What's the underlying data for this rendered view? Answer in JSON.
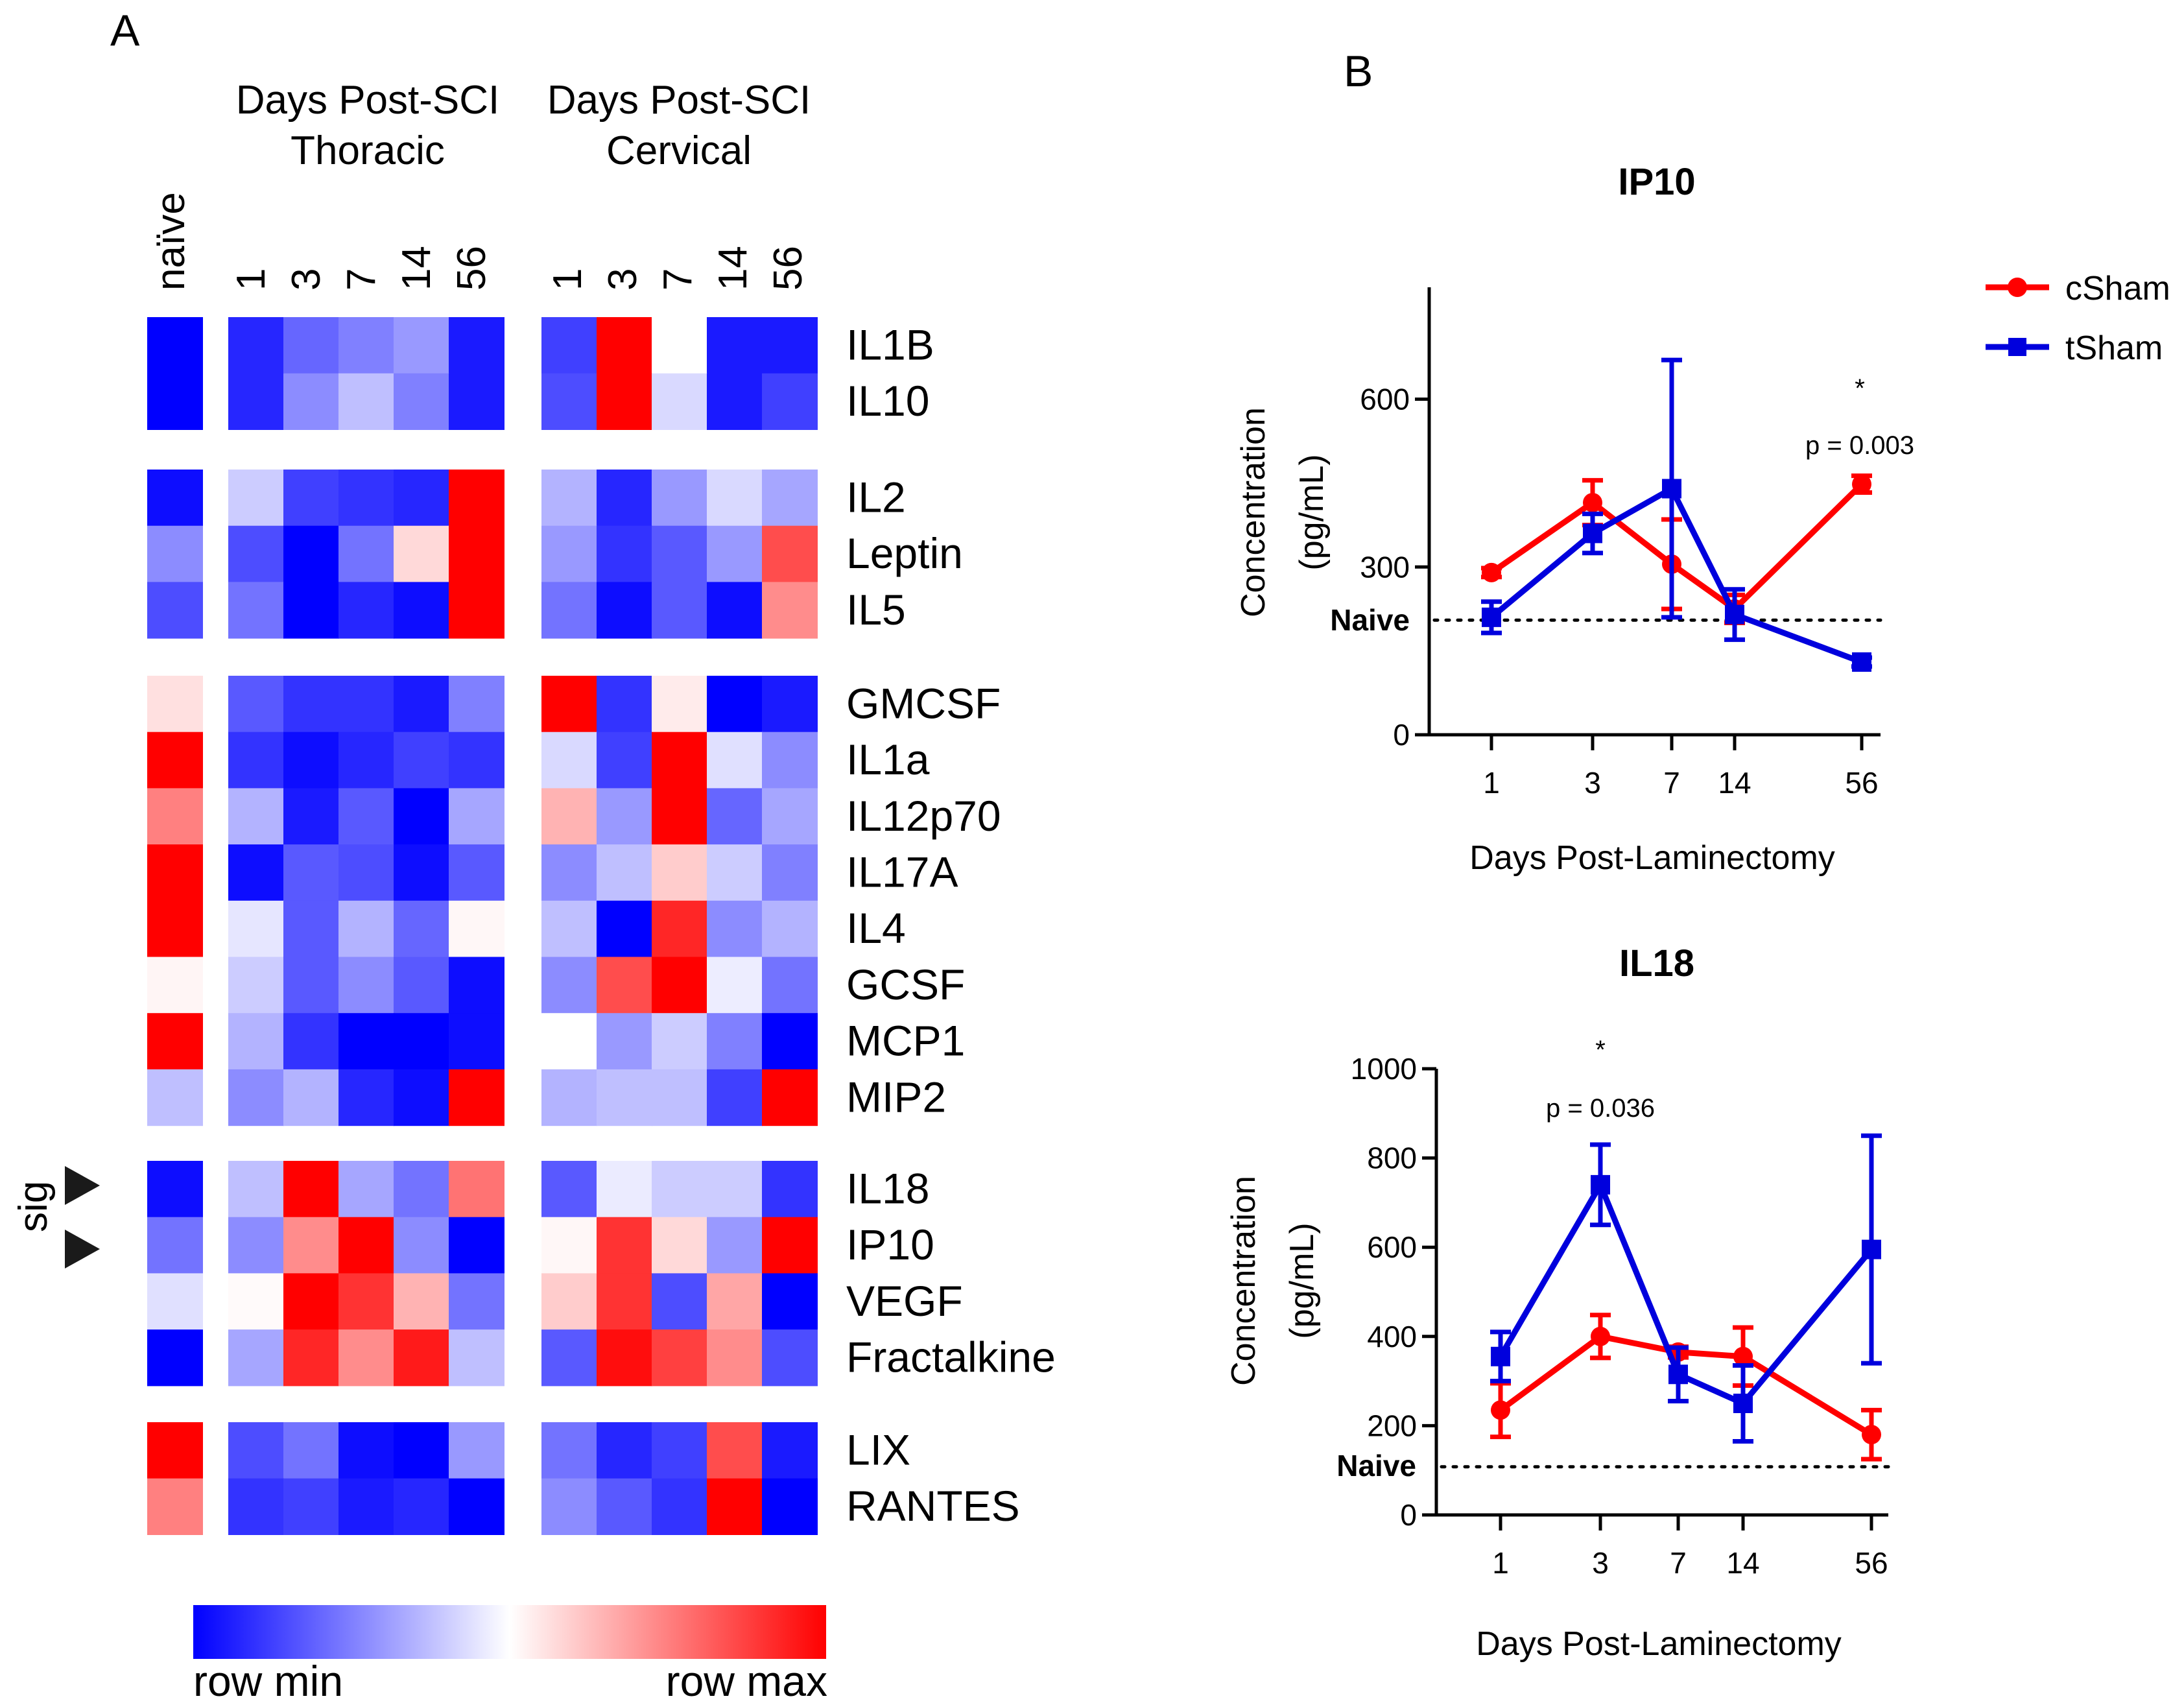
{
  "panel_labels": {
    "a": "A",
    "b": "B"
  },
  "heatmap": {
    "naive_label": "naïve",
    "groups": [
      {
        "title_line1": "Days Post-SCI",
        "title_line2": "Thoracic",
        "days": [
          "1",
          "3",
          "7",
          "14",
          "56"
        ]
      },
      {
        "title_line1": "Days Post-SCI",
        "title_line2": "Cervical",
        "days": [
          "1",
          "3",
          "7",
          "14",
          "56"
        ]
      }
    ],
    "sig_label": "sig",
    "legend_min": "row min",
    "legend_max": "row max",
    "colors": {
      "min": "#0000ff",
      "mid": "#ffffff",
      "max": "#ff0000"
    },
    "blocks": [
      {
        "rows": [
          {
            "name": "IL1B",
            "values": [
              -1,
              -0.85,
              -0.6,
              -0.5,
              -0.4,
              -0.9,
              -0.75,
              1,
              0,
              -0.9,
              -0.9
            ]
          },
          {
            "name": "IL10",
            "values": [
              -1,
              -0.85,
              -0.45,
              -0.25,
              -0.5,
              -0.9,
              -0.7,
              1,
              -0.15,
              -0.9,
              -0.75
            ]
          }
        ]
      },
      {
        "rows": [
          {
            "name": "IL2",
            "values": [
              -0.95,
              -0.2,
              -0.75,
              -0.8,
              -0.85,
              1,
              -0.3,
              -0.85,
              -0.4,
              -0.15,
              -0.35
            ]
          },
          {
            "name": "Leptin",
            "values": [
              -0.45,
              -0.7,
              -1,
              -0.55,
              0.15,
              1,
              -0.4,
              -0.8,
              -0.65,
              -0.4,
              0.7
            ]
          },
          {
            "name": "IL5",
            "values": [
              -0.7,
              -0.55,
              -1,
              -0.85,
              -0.95,
              1,
              -0.55,
              -0.95,
              -0.65,
              -0.95,
              0.45
            ]
          }
        ]
      },
      {
        "rows": [
          {
            "name": "GMCSF",
            "values": [
              0.12,
              -0.65,
              -0.8,
              -0.8,
              -0.9,
              -0.5,
              1,
              -0.8,
              0.08,
              -1,
              -0.9
            ]
          },
          {
            "name": "IL1a",
            "values": [
              1,
              -0.8,
              -0.95,
              -0.85,
              -0.75,
              -0.8,
              -0.15,
              -0.75,
              1,
              -0.12,
              -0.45
            ]
          },
          {
            "name": "IL12p70",
            "values": [
              0.5,
              -0.3,
              -0.9,
              -0.65,
              -1,
              -0.35,
              0.3,
              -0.4,
              1,
              -0.6,
              -0.35
            ]
          },
          {
            "name": "IL17A",
            "values": [
              1,
              -0.95,
              -0.65,
              -0.7,
              -0.95,
              -0.65,
              -0.45,
              -0.25,
              0.2,
              -0.2,
              -0.5
            ]
          },
          {
            "name": "IL4",
            "values": [
              1,
              -0.1,
              -0.65,
              -0.3,
              -0.6,
              0.03,
              -0.25,
              -1,
              0.85,
              -0.45,
              -0.3
            ]
          },
          {
            "name": "GCSF",
            "values": [
              0.04,
              -0.2,
              -0.65,
              -0.45,
              -0.65,
              -0.95,
              -0.45,
              0.7,
              1,
              -0.07,
              -0.55
            ]
          },
          {
            "name": "MCP1",
            "values": [
              1,
              -0.3,
              -0.8,
              -1,
              -1,
              -0.95,
              0,
              -0.4,
              -0.2,
              -0.5,
              -1
            ]
          },
          {
            "name": "MIP2",
            "values": [
              -0.25,
              -0.45,
              -0.3,
              -0.85,
              -0.95,
              1,
              -0.3,
              -0.25,
              -0.25,
              -0.75,
              1
            ]
          }
        ]
      },
      {
        "rows": [
          {
            "name": "IL18",
            "values": [
              -0.95,
              -0.25,
              1,
              -0.35,
              -0.55,
              0.55,
              -0.65,
              -0.08,
              -0.2,
              -0.2,
              -0.8
            ]
          },
          {
            "name": "IP10",
            "values": [
              -0.55,
              -0.45,
              0.45,
              1,
              -0.45,
              -1,
              0.03,
              0.8,
              0.15,
              -0.4,
              1
            ]
          },
          {
            "name": "VEGF",
            "values": [
              -0.12,
              0.02,
              1,
              0.8,
              0.3,
              -0.55,
              0.2,
              0.8,
              -0.7,
              0.35,
              -1
            ]
          },
          {
            "name": "Fractalkine",
            "values": [
              -1,
              -0.35,
              0.85,
              0.45,
              0.9,
              -0.25,
              -0.65,
              0.95,
              0.75,
              0.45,
              -0.7
            ]
          }
        ]
      },
      {
        "rows": [
          {
            "name": "LIX",
            "values": [
              1,
              -0.7,
              -0.55,
              -0.95,
              -1,
              -0.4,
              -0.55,
              -0.85,
              -0.75,
              0.7,
              -0.9
            ]
          },
          {
            "name": "RANTES",
            "values": [
              0.5,
              -0.8,
              -0.75,
              -0.9,
              -0.85,
              -1,
              -0.45,
              -0.65,
              -0.8,
              1,
              -1
            ]
          }
        ]
      }
    ]
  },
  "legend": {
    "entries": [
      {
        "name": "cSham",
        "color": "#ff0000",
        "marker": "circle"
      },
      {
        "name": "tSham",
        "color": "#0000dd",
        "marker": "square"
      }
    ]
  },
  "chart_data": [
    {
      "type": "line",
      "title": "IP10",
      "xlabel": "Days Post-Laminectomy",
      "ylabel_line1": "Concentration",
      "ylabel_line2": "(pg/mL)",
      "ylim": [
        0,
        800
      ],
      "yticks": [
        0,
        300,
        600
      ],
      "x": [
        1,
        3,
        7,
        14,
        56
      ],
      "x_tick_labels": [
        "1",
        "3",
        "7",
        "14",
        "56"
      ],
      "naive_label": "Naive",
      "naive_value": 205,
      "series": [
        {
          "name": "cSham",
          "color": "#ff0000",
          "marker": "circle",
          "values": [
            290,
            415,
            305,
            225,
            448
          ],
          "err": [
            8,
            40,
            80,
            25,
            15
          ]
        },
        {
          "name": "tSham",
          "color": "#0000dd",
          "marker": "square",
          "values": [
            210,
            360,
            440,
            215,
            130
          ],
          "err": [
            28,
            35,
            230,
            45,
            8
          ]
        }
      ],
      "annotations": [
        {
          "x": 56,
          "star": "*",
          "text": "p = 0.003"
        }
      ]
    },
    {
      "type": "line",
      "title": "IL18",
      "xlabel": "Days Post-Laminectomy",
      "ylabel_line1": "Concentration",
      "ylabel_line2": "(pg/mL)",
      "ylim": [
        0,
        1000
      ],
      "yticks": [
        0,
        200,
        400,
        600,
        800,
        1000
      ],
      "x": [
        1,
        3,
        7,
        14,
        56
      ],
      "x_tick_labels": [
        "1",
        "3",
        "7",
        "14",
        "56"
      ],
      "naive_label": "Naive",
      "naive_value": 108,
      "series": [
        {
          "name": "cSham",
          "color": "#ff0000",
          "marker": "circle",
          "values": [
            235,
            400,
            365,
            355,
            180
          ],
          "err": [
            60,
            48,
            12,
            65,
            55
          ]
        },
        {
          "name": "tSham",
          "color": "#0000dd",
          "marker": "square",
          "values": [
            355,
            740,
            315,
            250,
            595
          ],
          "err": [
            55,
            90,
            60,
            85,
            255
          ]
        }
      ],
      "annotations": [
        {
          "x": 3,
          "star": "*",
          "text": "p = 0.036"
        }
      ]
    }
  ]
}
